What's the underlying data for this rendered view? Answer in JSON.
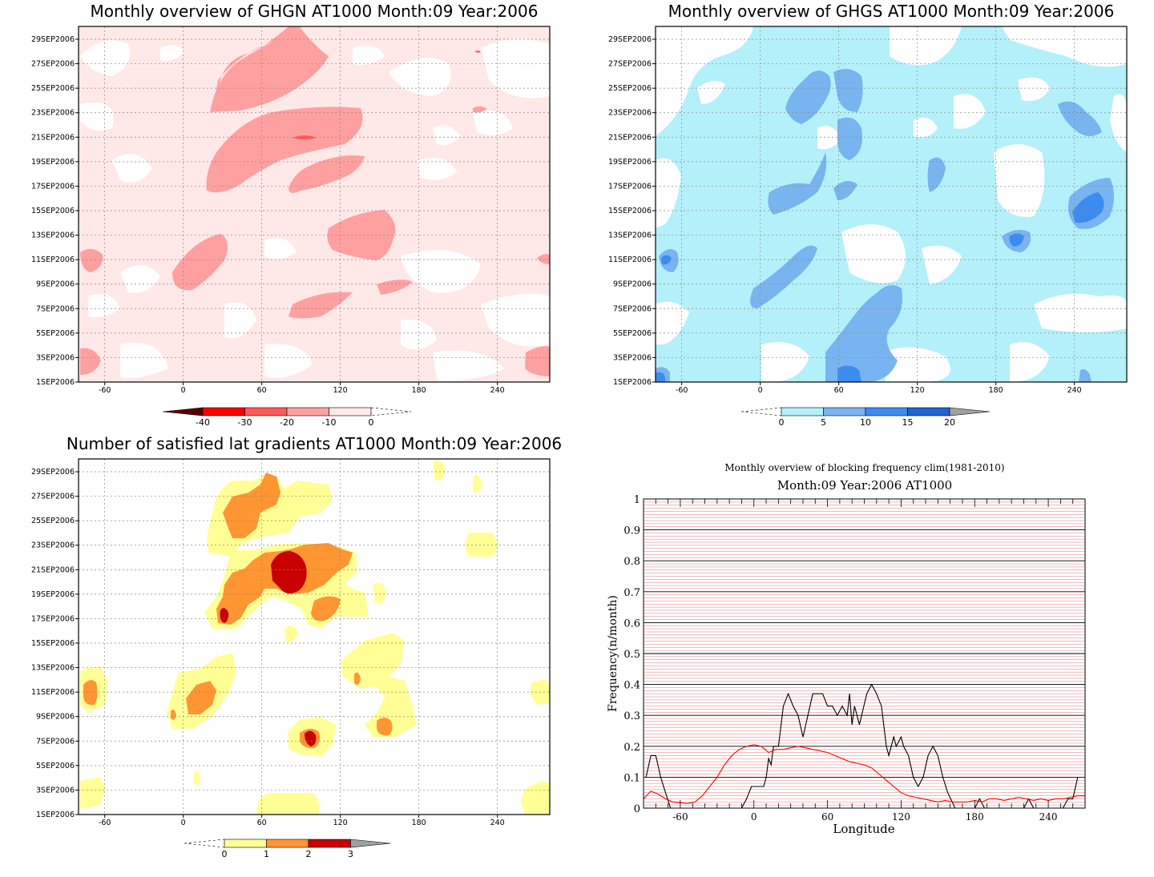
{
  "panels": {
    "ghgn": {
      "title": "Monthly overview of GHGN AT1000 Month:09 Year:2006",
      "colorbar": {
        "labels": [
          "-40",
          "-30",
          "-20",
          "-10",
          "0"
        ],
        "colors": [
          "#5a0000",
          "#ff0000",
          "#ff5a5a",
          "#ffa0a0",
          "#ffe8e8"
        ]
      },
      "fill_colors": {
        "light": "#ffe8e8",
        "mid": "#ffa0a0",
        "strong": "#ff5a5a",
        "max": "#ff0000"
      }
    },
    "ghgs": {
      "title": "Monthly overview of GHGS AT1000 Month:09 Year:2006",
      "colorbar": {
        "labels": [
          "0",
          "5",
          "10",
          "15",
          "20"
        ],
        "colors": [
          "#b4f0fa",
          "#78b4f0",
          "#3c8cf0",
          "#1e64d2",
          "#a0a0a0"
        ]
      },
      "fill_colors": {
        "light": "#b4f0fa",
        "mid": "#78b4f0",
        "strong": "#3c8cf0",
        "max": "#1e64d2"
      }
    },
    "lat_gradients": {
      "title": "Number of satisfied lat gradients AT1000 Month:09 Year:2006",
      "colorbar": {
        "labels": [
          "0",
          "1",
          "2",
          "3"
        ],
        "colors": [
          "#ffff96",
          "#ff9632",
          "#c80000",
          "#a0a0a0"
        ]
      },
      "fill_colors": {
        "light": "#ffff96",
        "mid": "#ff9632",
        "max": "#c80000"
      }
    }
  },
  "hovmoller_axes": {
    "x_ticks": [
      "-60",
      "0",
      "60",
      "120",
      "180",
      "240"
    ],
    "y_ticks": [
      "1SEP2006",
      "3SEP2006",
      "5SEP2006",
      "7SEP2006",
      "9SEP2006",
      "11SEP2006",
      "13SEP2006",
      "15SEP2006",
      "17SEP2006",
      "19SEP2006",
      "21SEP2006",
      "23SEP2006",
      "25SEP2006",
      "27SEP2006",
      "29SEP2006"
    ]
  },
  "chart_data": [
    {
      "type": "line",
      "title": "Monthly overview of blocking frequency clim(1981-2010)",
      "subtitle": "Month:09 Year:2006  AT1000",
      "xlabel": "Longitude",
      "ylabel": "Frequency(n/month)",
      "xlim": [
        -90,
        270
      ],
      "ylim": [
        0,
        1
      ],
      "x_ticks": [
        "-60",
        "0",
        "60",
        "120",
        "180",
        "240"
      ],
      "y_ticks": [
        "0",
        "0.1",
        "0.2",
        "0.3",
        "0.4",
        "0.5",
        "0.6",
        "0.7",
        "0.8",
        "0.9",
        "1"
      ],
      "grid": true,
      "legend": "none",
      "series": [
        {
          "color": "#000000",
          "points": [
            [
              -88,
              0.1
            ],
            [
              -84,
              0.17
            ],
            [
              -80,
              0.17
            ],
            [
              -76,
              0.1
            ],
            [
              -72,
              0.05
            ],
            [
              -68,
              0.0
            ],
            [
              -64,
              0.0
            ],
            [
              -10,
              0.0
            ],
            [
              -6,
              0.03
            ],
            [
              -2,
              0.07
            ],
            [
              4,
              0.07
            ],
            [
              8,
              0.07
            ],
            [
              10,
              0.1
            ],
            [
              12,
              0.16
            ],
            [
              14,
              0.14
            ],
            [
              16,
              0.2
            ],
            [
              20,
              0.2
            ],
            [
              24,
              0.33
            ],
            [
              28,
              0.37
            ],
            [
              32,
              0.33
            ],
            [
              36,
              0.3
            ],
            [
              40,
              0.23
            ],
            [
              44,
              0.3
            ],
            [
              48,
              0.37
            ],
            [
              56,
              0.37
            ],
            [
              60,
              0.33
            ],
            [
              64,
              0.33
            ],
            [
              68,
              0.3
            ],
            [
              72,
              0.33
            ],
            [
              76,
              0.3
            ],
            [
              78,
              0.37
            ],
            [
              80,
              0.27
            ],
            [
              82,
              0.33
            ],
            [
              86,
              0.27
            ],
            [
              92,
              0.37
            ],
            [
              96,
              0.4
            ],
            [
              100,
              0.37
            ],
            [
              104,
              0.33
            ],
            [
              108,
              0.2
            ],
            [
              110,
              0.17
            ],
            [
              114,
              0.23
            ],
            [
              116,
              0.2
            ],
            [
              120,
              0.23
            ],
            [
              122,
              0.2
            ],
            [
              126,
              0.17
            ],
            [
              130,
              0.1
            ],
            [
              134,
              0.07
            ],
            [
              138,
              0.1
            ],
            [
              142,
              0.17
            ],
            [
              146,
              0.2
            ],
            [
              150,
              0.17
            ],
            [
              154,
              0.1
            ],
            [
              158,
              0.05
            ],
            [
              164,
              0.0
            ],
            [
              180,
              0.0
            ],
            [
              184,
              0.03
            ],
            [
              188,
              0.0
            ],
            [
              220,
              0.0
            ],
            [
              224,
              0.03
            ],
            [
              228,
              0.0
            ],
            [
              252,
              0.0
            ],
            [
              256,
              0.03
            ],
            [
              260,
              0.03
            ],
            [
              264,
              0.1
            ]
          ]
        },
        {
          "color": "#ff0000",
          "points": [
            [
              -90,
              0.03
            ],
            [
              -84,
              0.055
            ],
            [
              -78,
              0.045
            ],
            [
              -72,
              0.03
            ],
            [
              -66,
              0.02
            ],
            [
              -54,
              0.015
            ],
            [
              -48,
              0.02
            ],
            [
              -42,
              0.04
            ],
            [
              -36,
              0.07
            ],
            [
              -30,
              0.1
            ],
            [
              -24,
              0.14
            ],
            [
              -18,
              0.17
            ],
            [
              -12,
              0.19
            ],
            [
              -6,
              0.2
            ],
            [
              0,
              0.205
            ],
            [
              6,
              0.2
            ],
            [
              12,
              0.18
            ],
            [
              18,
              0.19
            ],
            [
              24,
              0.19
            ],
            [
              30,
              0.195
            ],
            [
              36,
              0.2
            ],
            [
              42,
              0.195
            ],
            [
              48,
              0.19
            ],
            [
              54,
              0.185
            ],
            [
              60,
              0.18
            ],
            [
              66,
              0.17
            ],
            [
              72,
              0.16
            ],
            [
              78,
              0.15
            ],
            [
              84,
              0.145
            ],
            [
              90,
              0.14
            ],
            [
              96,
              0.13
            ],
            [
              102,
              0.11
            ],
            [
              108,
              0.09
            ],
            [
              114,
              0.07
            ],
            [
              120,
              0.05
            ],
            [
              126,
              0.04
            ],
            [
              132,
              0.035
            ],
            [
              138,
              0.03
            ],
            [
              144,
              0.025
            ],
            [
              150,
              0.02
            ],
            [
              156,
              0.025
            ],
            [
              162,
              0.02
            ],
            [
              168,
              0.02
            ],
            [
              174,
              0.02
            ],
            [
              180,
              0.025
            ],
            [
              186,
              0.02
            ],
            [
              192,
              0.03
            ],
            [
              198,
              0.03
            ],
            [
              204,
              0.025
            ],
            [
              210,
              0.03
            ],
            [
              216,
              0.035
            ],
            [
              222,
              0.03
            ],
            [
              228,
              0.025
            ],
            [
              234,
              0.03
            ],
            [
              240,
              0.025
            ],
            [
              246,
              0.03
            ],
            [
              252,
              0.03
            ],
            [
              258,
              0.035
            ],
            [
              264,
              0.04
            ],
            [
              270,
              0.04
            ]
          ]
        }
      ]
    }
  ]
}
